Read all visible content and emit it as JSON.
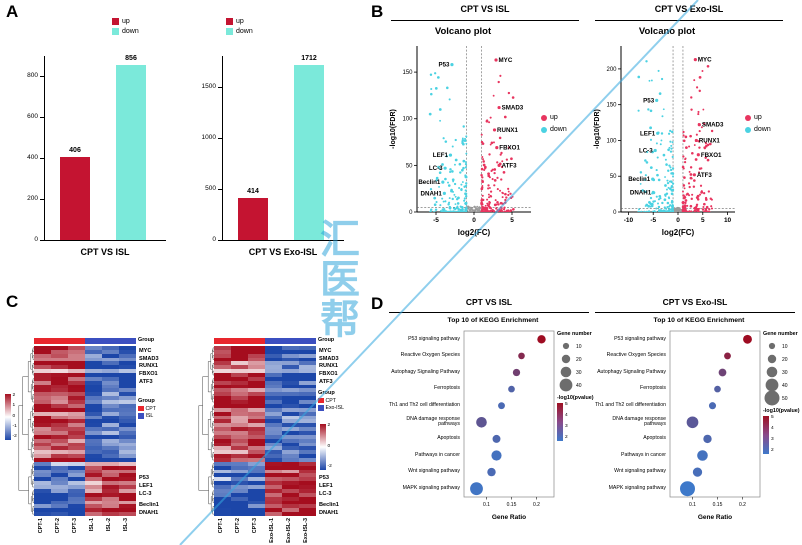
{
  "watermark": {
    "text": "汇医帮",
    "color": "#2BA6DD"
  },
  "panel_labels": {
    "a": "A",
    "b": "B",
    "c": "C",
    "d": "D"
  },
  "chart_data": [
    {
      "type": "bar",
      "panel": "A",
      "title": "CPT VS ISL",
      "categories": [
        "up",
        "down"
      ],
      "values": [
        406,
        856
      ],
      "bar_labels": [
        "406",
        "856"
      ],
      "colors": [
        "#C41431",
        "#7BE9DA"
      ],
      "legend": [
        "up",
        "down"
      ],
      "yticks": [
        0,
        200,
        400,
        600,
        800
      ],
      "ylim": [
        0,
        900
      ]
    },
    {
      "type": "bar",
      "panel": "A",
      "title": "CPT VS Exo-ISL",
      "categories": [
        "up",
        "down"
      ],
      "values": [
        414,
        1712
      ],
      "bar_labels": [
        "414",
        "1712"
      ],
      "colors": [
        "#C41431",
        "#7BE9DA"
      ],
      "legend": [
        "up",
        "down"
      ],
      "yticks": [
        0,
        500,
        1000,
        1500
      ],
      "ylim": [
        0,
        1800
      ]
    },
    {
      "type": "scatter",
      "subtype": "volcano",
      "panel": "B",
      "header": "CPT VS ISL",
      "title": "Volcano plot",
      "xlabel": "log2(FC)",
      "ylabel": "-log10(FDR)",
      "xlim": [
        -7.5,
        7.5
      ],
      "ylim": [
        0,
        178
      ],
      "xticks": [
        -5,
        0,
        5
      ],
      "yticks": [
        0,
        50,
        100,
        150
      ],
      "threshold_x": [
        -1,
        1
      ],
      "threshold_y": 5,
      "legend": [
        {
          "label": "up",
          "color": "#E8355F"
        },
        {
          "label": "down",
          "color": "#4BD2E2"
        }
      ],
      "ns_color": "#9B9B9B",
      "genes_up": [
        {
          "name": "MYC",
          "x": 2.9,
          "y": 163
        },
        {
          "name": "SMAD3",
          "x": 3.3,
          "y": 112
        },
        {
          "name": "RUNX1",
          "x": 2.7,
          "y": 88
        },
        {
          "name": "FBXO1",
          "x": 3.0,
          "y": 69
        },
        {
          "name": "ATF3",
          "x": 3.3,
          "y": 50
        }
      ],
      "genes_down": [
        {
          "name": "P53",
          "x": -2.9,
          "y": 158
        },
        {
          "name": "LEF1",
          "x": -3.1,
          "y": 61
        },
        {
          "name": "LC-3",
          "x": -3.8,
          "y": 47
        },
        {
          "name": "Beclin1",
          "x": -4.1,
          "y": 32
        },
        {
          "name": "DNAH1",
          "x": -3.9,
          "y": 20
        }
      ],
      "spread_up": 4.2,
      "spread_down": 4.8,
      "seed": 7
    },
    {
      "type": "scatter",
      "subtype": "volcano",
      "panel": "B",
      "header": "CPT VS Exo-ISL",
      "title": "Volcano plot",
      "xlabel": "log2(FC)",
      "ylabel": "-log10(FDR)",
      "xlim": [
        -11.5,
        11.5
      ],
      "ylim": [
        0,
        232
      ],
      "xticks": [
        -10,
        -5,
        0,
        5,
        10
      ],
      "yticks": [
        0,
        50,
        100,
        150,
        200
      ],
      "threshold_x": [
        -1,
        1
      ],
      "threshold_y": 5,
      "legend": [
        {
          "label": "up",
          "color": "#E8355F"
        },
        {
          "label": "down",
          "color": "#4BD2E2"
        }
      ],
      "ns_color": "#9B9B9B",
      "genes_up": [
        {
          "name": "MYC",
          "x": 3.5,
          "y": 213
        },
        {
          "name": "SMAD3",
          "x": 4.3,
          "y": 122
        },
        {
          "name": "RUNX1",
          "x": 3.7,
          "y": 100
        },
        {
          "name": "FBXO1",
          "x": 4.1,
          "y": 80
        },
        {
          "name": "ATF3",
          "x": 3.3,
          "y": 52
        }
      ],
      "genes_down": [
        {
          "name": "P53",
          "x": -4.3,
          "y": 156
        },
        {
          "name": "LEF1",
          "x": -4.1,
          "y": 110
        },
        {
          "name": "LC-3",
          "x": -4.6,
          "y": 86
        },
        {
          "name": "Beclin1",
          "x": -5.1,
          "y": 46
        },
        {
          "name": "DNAH1",
          "x": -4.9,
          "y": 27
        }
      ],
      "spread_up": 6.0,
      "spread_down": 7.0,
      "seed": 13
    },
    {
      "type": "heatmap",
      "panel": "C",
      "columns": [
        "CPT-1",
        "CPT-2",
        "CPT-3",
        "ISL-1",
        "ISL-2",
        "ISL-3"
      ],
      "group_annotation": {
        "title": "Group",
        "groups": [
          {
            "label": "CPT",
            "color": "#E8262D",
            "cols": [
              0,
              1,
              2
            ]
          },
          {
            "label": "ISL",
            "color": "#3B4FC0",
            "cols": [
              3,
              4,
              5
            ]
          }
        ]
      },
      "genes_top": [
        "MYC",
        "SMAD3",
        "RUNX1",
        "FBXO1",
        "ATF3"
      ],
      "genes_bottom": [
        "P53",
        "LEF1",
        "LC-3",
        "Beclin1",
        "DNAH1"
      ],
      "colorscale_ticks": [
        2,
        1,
        0,
        -1,
        -2
      ],
      "n_rows": 44,
      "up_block_rows": 30,
      "seed": 21,
      "colorbar_side": "left"
    },
    {
      "type": "heatmap",
      "panel": "C",
      "columns": [
        "CPT-1",
        "CPT-2",
        "CPT-3",
        "Exo-ISL-1",
        "Exo-ISL-2",
        "Exo-ISL-3"
      ],
      "group_annotation": {
        "title": "Group",
        "groups": [
          {
            "label": "CPT",
            "color": "#E8262D",
            "cols": [
              0,
              1,
              2
            ]
          },
          {
            "label": "Exo-ISL",
            "color": "#3B4FC0",
            "cols": [
              3,
              4,
              5
            ]
          }
        ]
      },
      "genes_top": [
        "MYC",
        "SMAD3",
        "RUNX1",
        "FBXO1",
        "ATF3"
      ],
      "genes_bottom": [
        "P53",
        "LEF1",
        "LC-3",
        "Beclin1",
        "DNAH1"
      ],
      "colorscale_ticks": [
        2,
        0,
        -2
      ],
      "n_rows": 44,
      "up_block_rows": 30,
      "seed": 29,
      "colorbar_side": "right"
    },
    {
      "type": "scatter",
      "subtype": "bubble",
      "panel": "D",
      "header": "CPT VS ISL",
      "title": "Top 10 of KEGG Enrichment",
      "xlabel": "Gene Ratio",
      "xlim": [
        0.055,
        0.235
      ],
      "xticks": [
        0.1,
        0.15,
        0.2
      ],
      "pathways": [
        {
          "name": "P53 signaling pathway",
          "ratio": 0.21,
          "count": 20,
          "logp": 5.0
        },
        {
          "name": "Reactive Oxygen Species",
          "ratio": 0.17,
          "count": 12,
          "logp": 4.2
        },
        {
          "name": "Autophagy Signaling Pathway",
          "ratio": 0.16,
          "count": 15,
          "logp": 3.6
        },
        {
          "name": "Ferroptosis",
          "ratio": 0.15,
          "count": 12,
          "logp": 2.6
        },
        {
          "name": "Th1 and Th2 cell differentiation",
          "ratio": 0.13,
          "count": 13,
          "logp": 2.4
        },
        {
          "name": "DNA damage response pathways",
          "ratio": 0.09,
          "count": 30,
          "logp": 3.0
        },
        {
          "name": "Apoptosis",
          "ratio": 0.12,
          "count": 18,
          "logp": 2.5
        },
        {
          "name": "Pathways in cancer",
          "ratio": 0.12,
          "count": 28,
          "logp": 2.2
        },
        {
          "name": "Wnt signaling pathway",
          "ratio": 0.11,
          "count": 20,
          "logp": 2.4
        },
        {
          "name": "MAPK signaling pathway",
          "ratio": 0.08,
          "count": 40,
          "logp": 2.1
        }
      ],
      "size_legend": {
        "title": "Gene number",
        "values": [
          10,
          20,
          30,
          40
        ]
      },
      "color_legend": {
        "title": "-log10(pvalue)",
        "ticks": [
          5,
          4,
          3,
          2
        ]
      }
    },
    {
      "type": "scatter",
      "subtype": "bubble",
      "panel": "D",
      "header": "CPT VS Exo-ISL",
      "title": "Top 10 of KEGG Enrichment",
      "xlabel": "Gene Ratio",
      "xlim": [
        0.055,
        0.235
      ],
      "xticks": [
        0.1,
        0.15,
        0.2
      ],
      "pathways": [
        {
          "name": "P53 signaling pathway",
          "ratio": 0.21,
          "count": 22,
          "logp": 5.0
        },
        {
          "name": "Reactive Oxygen Species",
          "ratio": 0.17,
          "count": 13,
          "logp": 4.4
        },
        {
          "name": "Autophagy Signaling Pathway",
          "ratio": 0.16,
          "count": 17,
          "logp": 3.5
        },
        {
          "name": "Ferroptosis",
          "ratio": 0.15,
          "count": 12,
          "logp": 2.7
        },
        {
          "name": "Th1 and Th2 cell differentiation",
          "ratio": 0.14,
          "count": 14,
          "logp": 2.4
        },
        {
          "name": "DNA damage response pathways",
          "ratio": 0.1,
          "count": 35,
          "logp": 2.9
        },
        {
          "name": "Apoptosis",
          "ratio": 0.13,
          "count": 20,
          "logp": 2.5
        },
        {
          "name": "Pathways in cancer",
          "ratio": 0.12,
          "count": 30,
          "logp": 2.2
        },
        {
          "name": "Wnt signaling pathway",
          "ratio": 0.11,
          "count": 24,
          "logp": 2.3
        },
        {
          "name": "MAPK signaling pathway",
          "ratio": 0.09,
          "count": 50,
          "logp": 2.0
        }
      ],
      "size_legend": {
        "title": "Gene number",
        "values": [
          10,
          20,
          30,
          40,
          50
        ]
      },
      "color_legend": {
        "title": "-log10(pvalue)",
        "ticks": [
          5,
          4,
          3,
          2
        ]
      }
    }
  ]
}
